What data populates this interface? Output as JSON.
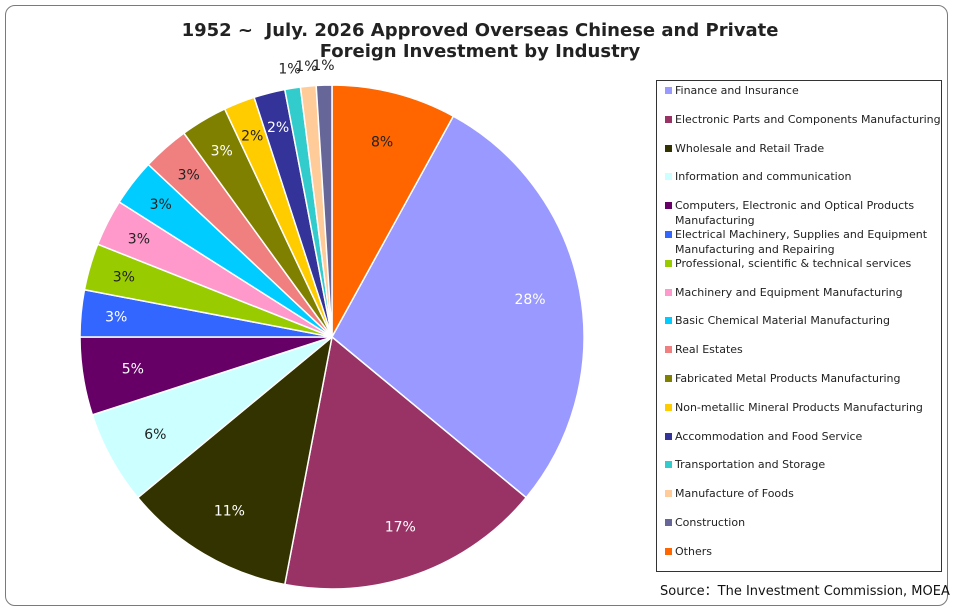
{
  "chart_data": {
    "type": "pie",
    "title_lines": [
      "1952 ~  July. 2026 Approved Overseas Chinese and Private",
      "Foreign Investment by Industry"
    ],
    "legend_position": "right",
    "source": "Source：The Investment Commission, MOEA",
    "slices": [
      {
        "label": "Finance and Insurance",
        "value": 28,
        "value_label": "28%",
        "color": "#9999FF",
        "label_color": "#ffffff"
      },
      {
        "label": "Electronic Parts and Components Manufacturing",
        "value": 17,
        "value_label": "17%",
        "color": "#993366",
        "label_color": "#ffffff"
      },
      {
        "label": "Wholesale and Retail Trade",
        "value": 11,
        "value_label": "11%",
        "color": "#333300",
        "label_color": "#ffffff"
      },
      {
        "label": "Information and communication",
        "value": 6,
        "value_label": "6%",
        "color": "#CCFFFF",
        "label_color": "#222222"
      },
      {
        "label": "Computers, Electronic and Optical Products Manufacturing",
        "value": 5,
        "value_label": "5%",
        "color": "#660066",
        "label_color": "#ffffff"
      },
      {
        "label": "Electrical Machinery, Supplies and Equipment Manufacturing and Repairing",
        "value": 3,
        "value_label": "3%",
        "color": "#3366FF",
        "label_color": "#ffffff"
      },
      {
        "label": "Professional, scientific & technical services",
        "value": 3,
        "value_label": "3%",
        "color": "#99CC00",
        "label_color": "#222222"
      },
      {
        "label": "Machinery and Equipment Manufacturing",
        "value": 3,
        "value_label": "3%",
        "color": "#FF99CC",
        "label_color": "#222222"
      },
      {
        "label": "Basic Chemical Material Manufacturing",
        "value": 3,
        "value_label": "3%",
        "color": "#00CCFF",
        "label_color": "#222222"
      },
      {
        "label": "Real Estates",
        "value": 3,
        "value_label": "3%",
        "color": "#F08080",
        "label_color": "#222222"
      },
      {
        "label": "Fabricated Metal Products Manufacturing",
        "value": 3,
        "value_label": "3%",
        "color": "#808000",
        "label_color": "#ffffff"
      },
      {
        "label": "Non-metallic Mineral Products Manufacturing",
        "value": 2,
        "value_label": "2%",
        "color": "#FFCC00",
        "label_color": "#222222"
      },
      {
        "label": "Accommodation and Food Service",
        "value": 2,
        "value_label": "2%",
        "color": "#333399",
        "label_color": "#ffffff"
      },
      {
        "label": "Transportation and Storage",
        "value": 1,
        "value_label": "1%",
        "color": "#33CCCC",
        "label_color": "#222222"
      },
      {
        "label": "Manufacture of Foods",
        "value": 1,
        "value_label": "1%",
        "color": "#FFCC99",
        "label_color": "#222222"
      },
      {
        "label": "Construction",
        "value": 1,
        "value_label": "1%",
        "color": "#666699",
        "label_color": "#222222"
      },
      {
        "label": "Others",
        "value": 8,
        "value_label": "8%",
        "color": "#FF6600",
        "label_color": "#222222"
      }
    ]
  }
}
